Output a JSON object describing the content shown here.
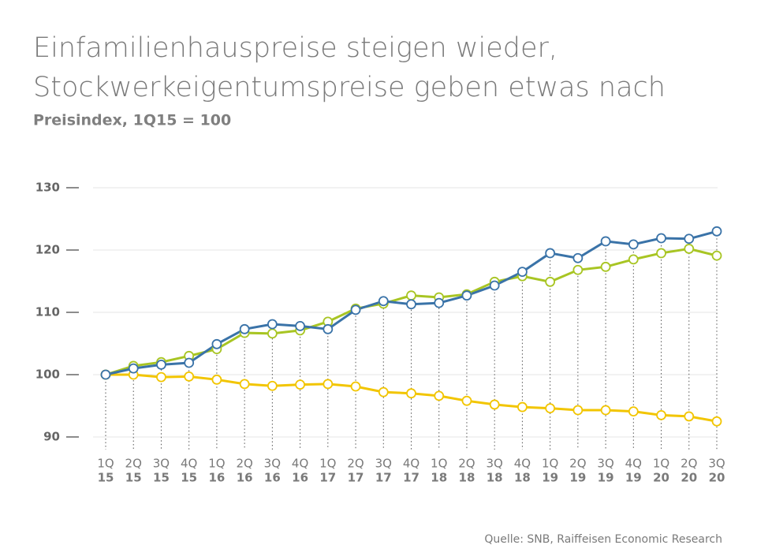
{
  "chart_data": {
    "type": "line",
    "title": [
      "Einfamilienhauspreise steigen wieder,",
      "Stockwerkeigentumspreise geben etwas nach"
    ],
    "subtitle": "Preisindex, 1Q15 = 100",
    "source": "Quelle: SNB, Raiffeisen Economic Research",
    "categories": [
      [
        "1Q",
        "15"
      ],
      [
        "2Q",
        "15"
      ],
      [
        "3Q",
        "15"
      ],
      [
        "4Q",
        "15"
      ],
      [
        "1Q",
        "16"
      ],
      [
        "2Q",
        "16"
      ],
      [
        "3Q",
        "16"
      ],
      [
        "4Q",
        "16"
      ],
      [
        "1Q",
        "17"
      ],
      [
        "2Q",
        "17"
      ],
      [
        "3Q",
        "17"
      ],
      [
        "4Q",
        "17"
      ],
      [
        "1Q",
        "18"
      ],
      [
        "2Q",
        "18"
      ],
      [
        "3Q",
        "18"
      ],
      [
        "4Q",
        "18"
      ],
      [
        "1Q",
        "19"
      ],
      [
        "2Q",
        "19"
      ],
      [
        "3Q",
        "19"
      ],
      [
        "4Q",
        "19"
      ],
      [
        "1Q",
        "20"
      ],
      [
        "2Q",
        "20"
      ],
      [
        "3Q",
        "20"
      ]
    ],
    "ylim": [
      90,
      130
    ],
    "yticks": [
      90,
      100,
      110,
      120,
      130
    ],
    "grid": true,
    "series": [
      {
        "color": "#f2c500",
        "values": [
          100,
          100.0,
          99.6,
          99.7,
          99.2,
          98.5,
          98.2,
          98.4,
          98.5,
          98.1,
          97.2,
          97.0,
          96.6,
          95.8,
          95.2,
          94.8,
          94.6,
          94.3,
          94.3,
          94.1,
          93.5,
          93.3,
          92.5
        ]
      },
      {
        "color": "#a8c523",
        "values": [
          100,
          101.4,
          102.0,
          103.0,
          104.1,
          106.7,
          106.6,
          107.1,
          108.5,
          110.6,
          111.4,
          112.7,
          112.4,
          112.9,
          114.9,
          115.8,
          114.9,
          116.8,
          117.3,
          118.5,
          119.5,
          120.2,
          119.1
        ]
      },
      {
        "color": "#3a73a8",
        "values": [
          100,
          101.0,
          101.6,
          101.9,
          104.9,
          107.3,
          108.1,
          107.8,
          107.3,
          110.4,
          111.8,
          111.3,
          111.5,
          112.7,
          114.3,
          116.5,
          119.5,
          118.7,
          121.4,
          120.9,
          121.9,
          121.8,
          123.0
        ]
      }
    ]
  }
}
